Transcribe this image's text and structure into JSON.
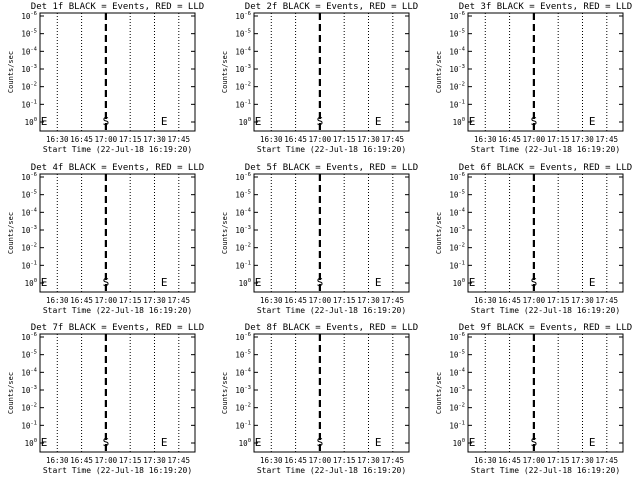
{
  "chart_data": [
    {
      "type": "line",
      "title": "Det 1f BLACK = Events, RED = LLD",
      "xlabel": "Start Time (22-Jul-18 16:19:20)",
      "ylabel": "Counts/sec",
      "xticks": [
        "16:30",
        "16:45",
        "17:00",
        "17:15",
        "17:30",
        "17:45"
      ],
      "yticks": [
        "10^0",
        "10^-1",
        "10^-2",
        "10^-3",
        "10^-4",
        "10^-5",
        "10^-6"
      ],
      "markers": [
        {
          "text": "E",
          "x": "16:19"
        },
        {
          "text": "S",
          "x": "17:00"
        },
        {
          "text": "E",
          "x": "17:36"
        }
      ],
      "series": [],
      "ylim": [
        "1e-6",
        "1"
      ],
      "scale": "log"
    },
    {
      "type": "line",
      "title": "Det 2f BLACK = Events, RED = LLD",
      "xlabel": "Start Time (22-Jul-18 16:19:20)",
      "ylabel": "Counts/sec",
      "xticks": [
        "16:30",
        "16:45",
        "17:00",
        "17:15",
        "17:30",
        "17:45"
      ],
      "yticks": [
        "10^0",
        "10^-1",
        "10^-2",
        "10^-3",
        "10^-4",
        "10^-5",
        "10^-6"
      ],
      "markers": [
        {
          "text": "E",
          "x": "16:19"
        },
        {
          "text": "S",
          "x": "17:00"
        },
        {
          "text": "E",
          "x": "17:36"
        }
      ],
      "series": [],
      "ylim": [
        "1e-6",
        "1"
      ],
      "scale": "log"
    },
    {
      "type": "line",
      "title": "Det 3f BLACK = Events, RED = LLD",
      "xlabel": "Start Time (22-Jul-18 16:19:20)",
      "ylabel": "Counts/sec",
      "xticks": [
        "16:30",
        "16:45",
        "17:00",
        "17:15",
        "17:30",
        "17:45"
      ],
      "yticks": [
        "10^0",
        "10^-1",
        "10^-2",
        "10^-3",
        "10^-4",
        "10^-5",
        "10^-6"
      ],
      "markers": [
        {
          "text": "E",
          "x": "16:19"
        },
        {
          "text": "S",
          "x": "17:00"
        },
        {
          "text": "E",
          "x": "17:36"
        }
      ],
      "series": [],
      "ylim": [
        "1e-6",
        "1"
      ],
      "scale": "log"
    },
    {
      "type": "line",
      "title": "Det 4f BLACK = Events, RED = LLD",
      "xlabel": "Start Time (22-Jul-18 16:19:20)",
      "ylabel": "Counts/sec",
      "xticks": [
        "16:30",
        "16:45",
        "17:00",
        "17:15",
        "17:30",
        "17:45"
      ],
      "yticks": [
        "10^0",
        "10^-1",
        "10^-2",
        "10^-3",
        "10^-4",
        "10^-5",
        "10^-6"
      ],
      "markers": [
        {
          "text": "E",
          "x": "16:19"
        },
        {
          "text": "S",
          "x": "17:00"
        },
        {
          "text": "E",
          "x": "17:36"
        }
      ],
      "series": [],
      "ylim": [
        "1e-6",
        "1"
      ],
      "scale": "log"
    },
    {
      "type": "line",
      "title": "Det 5f BLACK = Events, RED = LLD",
      "xlabel": "Start Time (22-Jul-18 16:19:20)",
      "ylabel": "Counts/sec",
      "xticks": [
        "16:30",
        "16:45",
        "17:00",
        "17:15",
        "17:30",
        "17:45"
      ],
      "yticks": [
        "10^0",
        "10^-1",
        "10^-2",
        "10^-3",
        "10^-4",
        "10^-5",
        "10^-6"
      ],
      "markers": [
        {
          "text": "E",
          "x": "16:19"
        },
        {
          "text": "S",
          "x": "17:00"
        },
        {
          "text": "E",
          "x": "17:36"
        }
      ],
      "series": [],
      "ylim": [
        "1e-6",
        "1"
      ],
      "scale": "log"
    },
    {
      "type": "line",
      "title": "Det 6f BLACK = Events, RED = LLD",
      "xlabel": "Start Time (22-Jul-18 16:19:20)",
      "ylabel": "Counts/sec",
      "xticks": [
        "16:30",
        "16:45",
        "17:00",
        "17:15",
        "17:30",
        "17:45"
      ],
      "yticks": [
        "10^0",
        "10^-1",
        "10^-2",
        "10^-3",
        "10^-4",
        "10^-5",
        "10^-6"
      ],
      "markers": [
        {
          "text": "E",
          "x": "16:19"
        },
        {
          "text": "S",
          "x": "17:00"
        },
        {
          "text": "E",
          "x": "17:36"
        }
      ],
      "series": [],
      "ylim": [
        "1e-6",
        "1"
      ],
      "scale": "log"
    },
    {
      "type": "line",
      "title": "Det 7f BLACK = Events, RED = LLD",
      "xlabel": "Start Time (22-Jul-18 16:19:20)",
      "ylabel": "Counts/sec",
      "xticks": [
        "16:30",
        "16:45",
        "17:00",
        "17:15",
        "17:30",
        "17:45"
      ],
      "yticks": [
        "10^0",
        "10^-1",
        "10^-2",
        "10^-3",
        "10^-4",
        "10^-5",
        "10^-6"
      ],
      "markers": [
        {
          "text": "E",
          "x": "16:19"
        },
        {
          "text": "S",
          "x": "17:00"
        },
        {
          "text": "E",
          "x": "17:36"
        }
      ],
      "series": [],
      "ylim": [
        "1e-6",
        "1"
      ],
      "scale": "log"
    },
    {
      "type": "line",
      "title": "Det 8f BLACK = Events, RED = LLD",
      "xlabel": "Start Time (22-Jul-18 16:19:20)",
      "ylabel": "Counts/sec",
      "xticks": [
        "16:30",
        "16:45",
        "17:00",
        "17:15",
        "17:30",
        "17:45"
      ],
      "yticks": [
        "10^0",
        "10^-1",
        "10^-2",
        "10^-3",
        "10^-4",
        "10^-5",
        "10^-6"
      ],
      "markers": [
        {
          "text": "E",
          "x": "16:19"
        },
        {
          "text": "S",
          "x": "17:00"
        },
        {
          "text": "E",
          "x": "17:36"
        }
      ],
      "series": [],
      "ylim": [
        "1e-6",
        "1"
      ],
      "scale": "log"
    },
    {
      "type": "line",
      "title": "Det 9f BLACK = Events, RED = LLD",
      "xlabel": "Start Time (22-Jul-18 16:19:20)",
      "ylabel": "Counts/sec",
      "xticks": [
        "16:30",
        "16:45",
        "17:00",
        "17:15",
        "17:30",
        "17:45"
      ],
      "yticks": [
        "10^0",
        "10^-1",
        "10^-2",
        "10^-3",
        "10^-4",
        "10^-5",
        "10^-6"
      ],
      "markers": [
        {
          "text": "E",
          "x": "16:19"
        },
        {
          "text": "S",
          "x": "17:00"
        },
        {
          "text": "E",
          "x": "17:36"
        }
      ],
      "series": [],
      "ylim": [
        "1e-6",
        "1"
      ],
      "scale": "log"
    }
  ],
  "colors": {
    "background": "#ffffff",
    "axes": "#000000"
  }
}
